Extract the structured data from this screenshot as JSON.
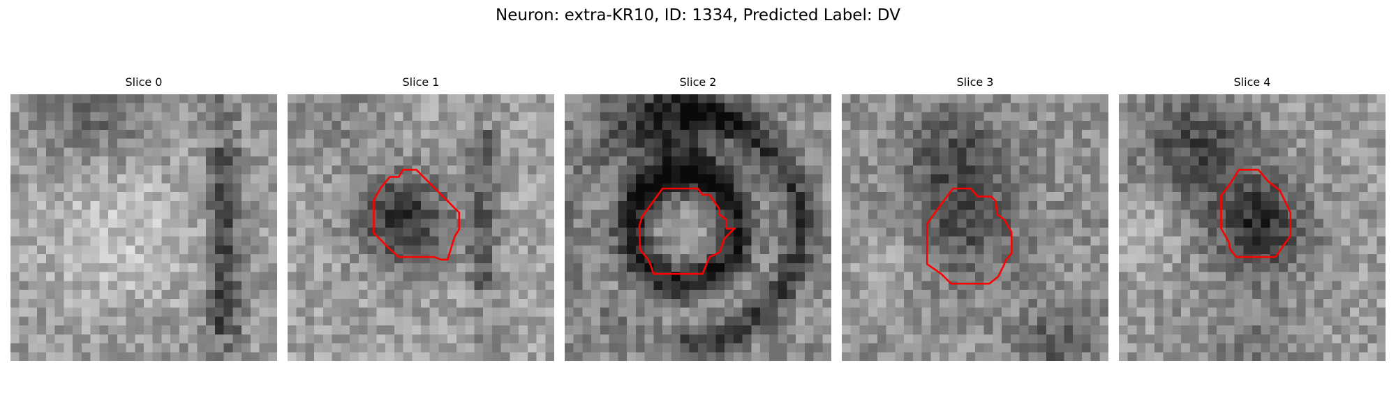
{
  "figure": {
    "title": "Neuron: extra-KR10, ID: 1334, Predicted Label: DV"
  },
  "slices": [
    {
      "title": "Slice 0",
      "has_contour": false
    },
    {
      "title": "Slice 1",
      "has_contour": true
    },
    {
      "title": "Slice 2",
      "has_contour": true
    },
    {
      "title": "Slice 3",
      "has_contour": true
    },
    {
      "title": "Slice 4",
      "has_contour": true
    }
  ],
  "colors": {
    "contour": "#ff0000",
    "background": "#ffffff"
  }
}
